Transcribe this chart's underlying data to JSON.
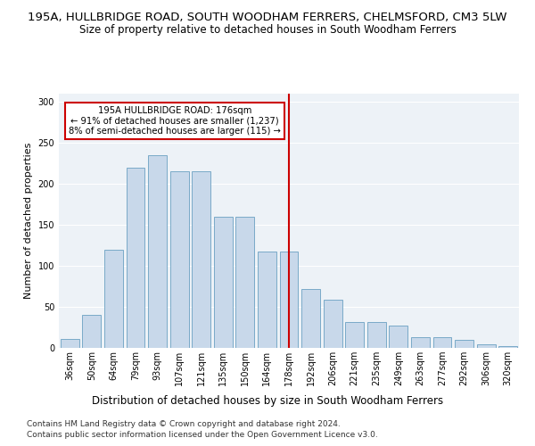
{
  "title": "195A, HULLBRIDGE ROAD, SOUTH WOODHAM FERRERS, CHELMSFORD, CM3 5LW",
  "subtitle": "Size of property relative to detached houses in South Woodham Ferrers",
  "xlabel": "Distribution of detached houses by size in South Woodham Ferrers",
  "ylabel": "Number of detached properties",
  "categories": [
    "36sqm",
    "50sqm",
    "64sqm",
    "79sqm",
    "93sqm",
    "107sqm",
    "121sqm",
    "135sqm",
    "150sqm",
    "164sqm",
    "178sqm",
    "192sqm",
    "206sqm",
    "221sqm",
    "235sqm",
    "249sqm",
    "263sqm",
    "277sqm",
    "292sqm",
    "306sqm",
    "320sqm"
  ],
  "values": [
    11,
    40,
    120,
    220,
    235,
    215,
    215,
    160,
    160,
    118,
    118,
    72,
    59,
    32,
    32,
    27,
    13,
    13,
    10,
    4,
    2
  ],
  "bar_color": "#c8d8ea",
  "bar_edge_color": "#7aaac8",
  "vline_x": 10,
  "vline_color": "#cc0000",
  "annotation_box_text": "195A HULLBRIDGE ROAD: 176sqm\n← 91% of detached houses are smaller (1,237)\n8% of semi-detached houses are larger (115) →",
  "annotation_box_color": "#cc0000",
  "ylim": [
    0,
    310
  ],
  "yticks": [
    0,
    50,
    100,
    150,
    200,
    250,
    300
  ],
  "background_color": "#edf2f7",
  "grid_color": "#ffffff",
  "footer_line1": "Contains HM Land Registry data © Crown copyright and database right 2024.",
  "footer_line2": "Contains public sector information licensed under the Open Government Licence v3.0.",
  "title_fontsize": 9.5,
  "subtitle_fontsize": 8.5,
  "xlabel_fontsize": 8.5,
  "ylabel_fontsize": 8,
  "tick_fontsize": 7,
  "footer_fontsize": 6.5
}
